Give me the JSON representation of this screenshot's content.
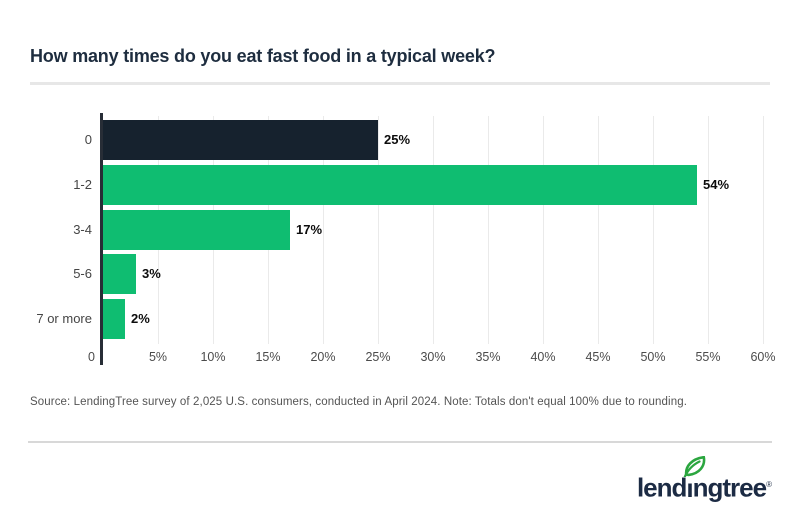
{
  "title": "How many times do you eat fast food in a typical week?",
  "source_note": "Source: LendingTree survey of 2,025 U.S. consumers, conducted in April 2024. Note: Totals don't equal 100% due to rounding.",
  "logo": {
    "pre": "lend",
    "dotless_i": "ı",
    "post": "ngtree",
    "trademark": "®"
  },
  "colors": {
    "title_navy": "#1e2d3f",
    "bar_dark_navy": "#16222e",
    "bar_green": "#0fbd71",
    "leaf_green": "#2ba63f",
    "logo_navy": "#1c2b44",
    "gridline": "#eaeaea",
    "divider_top": "#e7e7e7",
    "divider_bottom": "#d8d8d8",
    "axis": "#272d36",
    "tick_text": "#4b4b4b",
    "category_text": "#454545",
    "value_text": "#0c0c0c",
    "source_text": "#545454"
  },
  "chart_data": {
    "type": "bar",
    "orientation": "horizontal",
    "title": "How many times do you eat fast food in a typical week?",
    "categories": [
      "0",
      "1-2",
      "3-4",
      "5-6",
      "7 or more"
    ],
    "values": [
      25,
      54,
      17,
      3,
      2
    ],
    "value_labels": [
      "25%",
      "54%",
      "17%",
      "3%",
      "2%"
    ],
    "bar_color_keys": [
      "bar_dark_navy",
      "bar_green",
      "bar_green",
      "bar_green",
      "bar_green"
    ],
    "xlabel": "",
    "ylabel": "",
    "xlim": [
      0,
      60
    ],
    "x_tick_values": [
      0,
      5,
      10,
      15,
      20,
      25,
      30,
      35,
      40,
      45,
      50,
      55,
      60
    ],
    "x_tick_labels": [
      "0",
      "5%",
      "10%",
      "15%",
      "20%",
      "25%",
      "30%",
      "35%",
      "40%",
      "45%",
      "50%",
      "55%",
      "60%"
    ],
    "grid": true,
    "legend": false
  }
}
